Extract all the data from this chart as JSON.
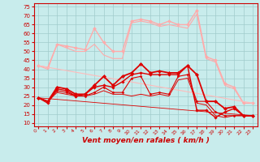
{
  "xlabel": "Vent moyen/en rafales ( km/h )",
  "xlim": [
    -0.5,
    23.5
  ],
  "ylim": [
    8,
    77
  ],
  "yticks": [
    10,
    15,
    20,
    25,
    30,
    35,
    40,
    45,
    50,
    55,
    60,
    65,
    70,
    75
  ],
  "xticks": [
    0,
    1,
    2,
    3,
    4,
    5,
    6,
    7,
    8,
    9,
    10,
    11,
    12,
    13,
    14,
    15,
    16,
    17,
    18,
    19,
    20,
    21,
    22,
    23
  ],
  "bg_color": "#c8ecec",
  "grid_color": "#a0cccc",
  "series": [
    {
      "x": [
        0,
        1,
        2,
        3,
        4,
        5,
        6,
        7,
        8,
        9,
        10,
        11,
        12,
        13,
        14,
        15,
        16,
        17,
        18,
        19,
        20,
        21,
        22,
        23
      ],
      "y": [
        42,
        41,
        54,
        53,
        52,
        51,
        63,
        55,
        50,
        50,
        67,
        68,
        67,
        65,
        67,
        65,
        65,
        73,
        47,
        45,
        32,
        30,
        21,
        21
      ],
      "color": "#ffaaaa",
      "lw": 1.0,
      "marker": "D",
      "ms": 2.0
    },
    {
      "x": [
        0,
        1,
        2,
        3,
        4,
        5,
        6,
        7,
        8,
        9,
        10,
        11,
        12,
        13,
        14,
        15,
        16,
        17,
        18,
        19,
        20,
        21,
        22,
        23
      ],
      "y": [
        42,
        40,
        54,
        52,
        50,
        50,
        54,
        48,
        46,
        46,
        66,
        67,
        66,
        64,
        65,
        64,
        63,
        71,
        46,
        44,
        31,
        29,
        21,
        21
      ],
      "color": "#ffaaaa",
      "lw": 0.8,
      "marker": null,
      "ms": 0
    },
    {
      "x": [
        0,
        23
      ],
      "y": [
        42,
        21
      ],
      "color": "#ffbbbb",
      "lw": 0.8,
      "marker": null,
      "ms": 0
    },
    {
      "x": [
        0,
        1,
        2,
        3,
        4,
        5,
        6,
        7,
        8,
        9,
        10,
        11,
        12,
        13,
        14,
        15,
        16,
        17,
        18,
        19,
        20,
        21,
        22,
        23
      ],
      "y": [
        24,
        22,
        30,
        29,
        26,
        26,
        31,
        36,
        31,
        36,
        38,
        43,
        38,
        39,
        38,
        38,
        42,
        37,
        22,
        22,
        18,
        19,
        14,
        14
      ],
      "color": "#dd0000",
      "lw": 1.3,
      "marker": "D",
      "ms": 2.2
    },
    {
      "x": [
        0,
        1,
        2,
        3,
        4,
        5,
        6,
        7,
        8,
        9,
        10,
        11,
        12,
        13,
        14,
        15,
        16,
        17,
        18,
        19,
        20,
        21,
        22,
        23
      ],
      "y": [
        24,
        21,
        29,
        28,
        25,
        26,
        30,
        31,
        30,
        33,
        37,
        38,
        37,
        37,
        37,
        37,
        42,
        17,
        17,
        13,
        16,
        18,
        14,
        14
      ],
      "color": "#dd0000",
      "lw": 1.0,
      "marker": "D",
      "ms": 1.8
    },
    {
      "x": [
        0,
        1,
        2,
        3,
        4,
        5,
        6,
        7,
        8,
        9,
        10,
        11,
        12,
        13,
        14,
        15,
        16,
        17,
        18,
        19,
        20,
        21,
        22,
        23
      ],
      "y": [
        24,
        22,
        28,
        27,
        25,
        25,
        27,
        30,
        27,
        27,
        35,
        36,
        26,
        27,
        26,
        36,
        37,
        22,
        22,
        16,
        14,
        14,
        14,
        14
      ],
      "color": "#dd0000",
      "lw": 0.8,
      "marker": "D",
      "ms": 1.5
    },
    {
      "x": [
        0,
        1,
        2,
        3,
        4,
        5,
        6,
        7,
        8,
        9,
        10,
        11,
        12,
        13,
        14,
        15,
        16,
        17,
        18,
        19,
        20,
        21,
        22,
        23
      ],
      "y": [
        24,
        22,
        27,
        26,
        25,
        25,
        26,
        28,
        26,
        26,
        25,
        26,
        25,
        26,
        25,
        34,
        35,
        21,
        20,
        14,
        13,
        14,
        14,
        14
      ],
      "color": "#dd0000",
      "lw": 0.7,
      "marker": null,
      "ms": 0
    },
    {
      "x": [
        0,
        23
      ],
      "y": [
        24,
        14
      ],
      "color": "#dd0000",
      "lw": 0.6,
      "marker": null,
      "ms": 0
    }
  ]
}
